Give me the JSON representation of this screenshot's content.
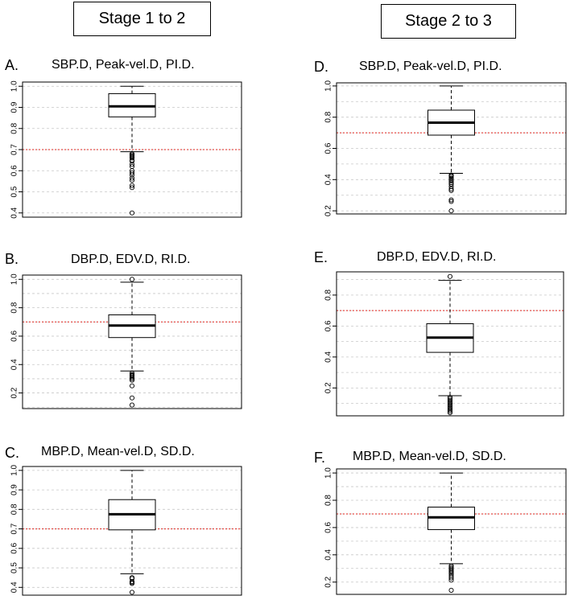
{
  "headers": {
    "left": "Stage 1 to 2",
    "right": "Stage 2 to 3"
  },
  "threshold_color": "#e0251e",
  "chart_data": [
    {
      "type": "boxplot",
      "letter": "A.",
      "title": "SBP.D, Peak-vel.D, PI.D.",
      "ylim": [
        0.38,
        1.02
      ],
      "ticks": [
        0.4,
        0.5,
        0.6,
        0.7,
        0.8,
        0.9,
        1.0
      ],
      "tick_labels": [
        "0.4",
        "0.5",
        "0.6",
        "0.7",
        "0.8",
        "0.9",
        "1.0"
      ],
      "gridlines": [
        0.4,
        0.5,
        0.6,
        0.7,
        0.8,
        0.9,
        1.0
      ],
      "threshold": 0.7,
      "box": {
        "whisker_low": 0.69,
        "q1": 0.855,
        "median": 0.905,
        "q3": 0.965,
        "whisker_high": 1.0
      },
      "outliers": [
        0.68,
        0.675,
        0.67,
        0.665,
        0.66,
        0.65,
        0.645,
        0.63,
        0.62,
        0.6,
        0.59,
        0.58,
        0.565,
        0.555,
        0.53,
        0.52,
        0.4
      ]
    },
    {
      "type": "boxplot",
      "letter": "D.",
      "title": "SBP.D, Peak-vel.D, PI.D.",
      "ylim": [
        0.18,
        1.02
      ],
      "ticks": [
        0.2,
        0.4,
        0.6,
        0.8,
        1.0
      ],
      "tick_labels": [
        "0.2",
        "0.4",
        "0.6",
        "0.8",
        "1.0"
      ],
      "gridlines": [
        0.2,
        0.3,
        0.4,
        0.5,
        0.6,
        0.7,
        0.8,
        0.9,
        1.0
      ],
      "threshold": 0.7,
      "box": {
        "whisker_low": 0.44,
        "q1": 0.685,
        "median": 0.765,
        "q3": 0.845,
        "whisker_high": 1.0
      },
      "outliers": [
        0.43,
        0.425,
        0.42,
        0.41,
        0.4,
        0.39,
        0.38,
        0.37,
        0.355,
        0.34,
        0.33,
        0.27,
        0.26,
        0.2
      ]
    },
    {
      "type": "boxplot",
      "letter": "B.",
      "title": "DBP.D, EDV.D, RI.D.",
      "ylim": [
        0.09,
        1.03
      ],
      "ticks": [
        0.2,
        0.4,
        0.6,
        0.8,
        1.0
      ],
      "tick_labels": [
        "0.2",
        "0.4",
        "0.6",
        "0.8",
        "1.0"
      ],
      "gridlines": [
        0.1,
        0.2,
        0.3,
        0.4,
        0.5,
        0.6,
        0.7,
        0.8,
        0.9,
        1.0
      ],
      "threshold": 0.7,
      "box": {
        "whisker_low": 0.355,
        "q1": 0.59,
        "median": 0.675,
        "q3": 0.75,
        "whisker_high": 0.98
      },
      "outliers": [
        1.0,
        0.34,
        0.33,
        0.325,
        0.32,
        0.31,
        0.3,
        0.29,
        0.25,
        0.165,
        0.115
      ]
    },
    {
      "type": "boxplot",
      "letter": "E.",
      "title": "DBP.D, EDV.D, RI.D.",
      "ylim": [
        0.02,
        0.95
      ],
      "ticks": [
        0.2,
        0.4,
        0.6,
        0.8
      ],
      "tick_labels": [
        "0.2",
        "0.4",
        "0.6",
        "0.8"
      ],
      "gridlines": [
        0.1,
        0.2,
        0.3,
        0.4,
        0.5,
        0.6,
        0.7,
        0.8,
        0.9
      ],
      "threshold": 0.7,
      "box": {
        "whisker_low": 0.15,
        "q1": 0.43,
        "median": 0.525,
        "q3": 0.615,
        "whisker_high": 0.895
      },
      "outliers": [
        0.92,
        0.14,
        0.13,
        0.12,
        0.11,
        0.1,
        0.09,
        0.08,
        0.07,
        0.06,
        0.05,
        0.04
      ]
    },
    {
      "type": "boxplot",
      "letter": "C.",
      "title": "MBP.D, Mean-vel.D, SD.D.",
      "ylim": [
        0.36,
        1.02
      ],
      "ticks": [
        0.4,
        0.5,
        0.6,
        0.7,
        0.8,
        0.9,
        1.0
      ],
      "tick_labels": [
        "0.4",
        "0.5",
        "0.6",
        "0.7",
        "0.8",
        "0.9",
        "1.0"
      ],
      "gridlines": [
        0.4,
        0.5,
        0.6,
        0.7,
        0.8,
        0.9,
        1.0
      ],
      "threshold": 0.7,
      "box": {
        "whisker_low": 0.47,
        "q1": 0.695,
        "median": 0.775,
        "q3": 0.85,
        "whisker_high": 1.0
      },
      "outliers": [
        0.45,
        0.445,
        0.43,
        0.425,
        0.42,
        0.375
      ]
    },
    {
      "type": "boxplot",
      "letter": "F.",
      "title": "MBP.D, Mean-vel.D, SD.D.",
      "ylim": [
        0.11,
        1.03
      ],
      "ticks": [
        0.2,
        0.4,
        0.6,
        0.8,
        1.0
      ],
      "tick_labels": [
        "0.2",
        "0.4",
        "0.6",
        "0.8",
        "1.0"
      ],
      "gridlines": [
        0.2,
        0.3,
        0.4,
        0.5,
        0.6,
        0.7,
        0.8,
        0.9,
        1.0
      ],
      "threshold": 0.7,
      "box": {
        "whisker_low": 0.335,
        "q1": 0.585,
        "median": 0.675,
        "q3": 0.75,
        "whisker_high": 1.0
      },
      "outliers": [
        0.32,
        0.31,
        0.3,
        0.29,
        0.28,
        0.27,
        0.26,
        0.245,
        0.23,
        0.215,
        0.14
      ]
    }
  ]
}
